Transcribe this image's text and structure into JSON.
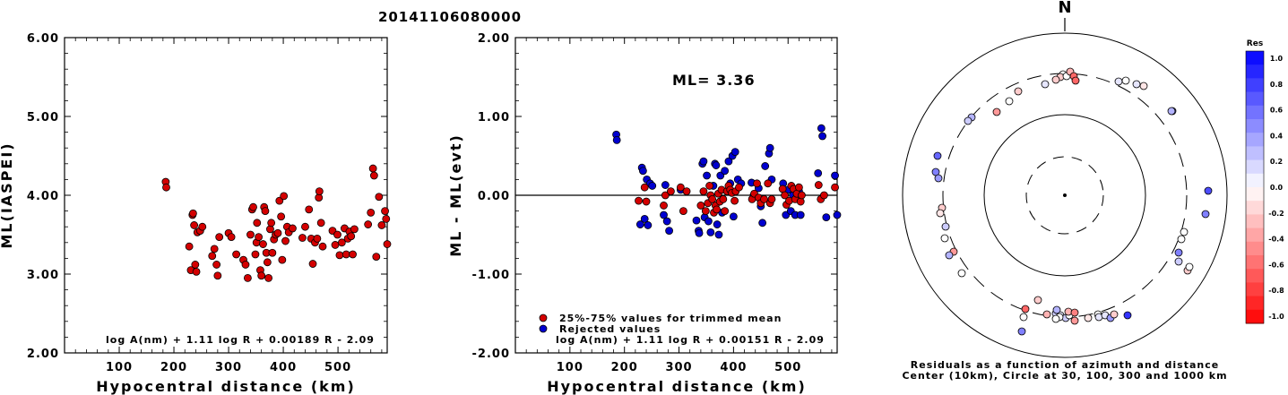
{
  "title": "20141106080000",
  "colors": {
    "red": "#d40000",
    "blue": "#0000d0",
    "axis": "#000000"
  },
  "chart_data": [
    {
      "type": "scatter",
      "xlabel": "Hypocentral distance (km)",
      "ylabel": "ML(IASPEI)",
      "xlim": [
        0,
        590
      ],
      "ylim": [
        2.0,
        6.0
      ],
      "xticks": [
        "100",
        "200",
        "300",
        "400",
        "500"
      ],
      "yticks": [
        "2.00",
        "3.00",
        "4.00",
        "5.00",
        "6.00"
      ],
      "formula": "log A(nm) + 1.11 log R + 0.00189 R - 2.09",
      "series": [
        {
          "color": "red",
          "points": [
            [
              185,
              4.17
            ],
            [
              186,
              4.1
            ],
            [
              228,
              3.35
            ],
            [
              231,
              3.05
            ],
            [
              234,
              3.75
            ],
            [
              235,
              3.77
            ],
            [
              237,
              3.62
            ],
            [
              239,
              3.12
            ],
            [
              241,
              3.03
            ],
            [
              243,
              3.53
            ],
            [
              248,
              3.55
            ],
            [
              252,
              3.6
            ],
            [
              270,
              3.23
            ],
            [
              274,
              3.32
            ],
            [
              278,
              3.12
            ],
            [
              280,
              2.98
            ],
            [
              283,
              3.47
            ],
            [
              300,
              3.52
            ],
            [
              305,
              3.47
            ],
            [
              314,
              3.25
            ],
            [
              327,
              3.18
            ],
            [
              331,
              3.12
            ],
            [
              335,
              2.95
            ],
            [
              340,
              3.5
            ],
            [
              343,
              3.82
            ],
            [
              345,
              3.85
            ],
            [
              349,
              3.25
            ],
            [
              351,
              3.4
            ],
            [
              352,
              3.65
            ],
            [
              355,
              3.47
            ],
            [
              358,
              3.05
            ],
            [
              360,
              2.98
            ],
            [
              363,
              3.38
            ],
            [
              365,
              3.85
            ],
            [
              367,
              3.8
            ],
            [
              369,
              3.27
            ],
            [
              371,
              3.15
            ],
            [
              373,
              2.95
            ],
            [
              376,
              3.57
            ],
            [
              378,
              3.65
            ],
            [
              380,
              3.27
            ],
            [
              383,
              3.44
            ],
            [
              386,
              3.5
            ],
            [
              390,
              3.52
            ],
            [
              393,
              3.93
            ],
            [
              396,
              3.73
            ],
            [
              398,
              3.18
            ],
            [
              401,
              3.99
            ],
            [
              404,
              3.42
            ],
            [
              407,
              3.6
            ],
            [
              410,
              3.53
            ],
            [
              417,
              3.58
            ],
            [
              435,
              3.46
            ],
            [
              440,
              3.6
            ],
            [
              447,
              3.82
            ],
            [
              451,
              3.45
            ],
            [
              454,
              3.13
            ],
            [
              458,
              3.4
            ],
            [
              462,
              3.45
            ],
            [
              465,
              3.97
            ],
            [
              466,
              4.05
            ],
            [
              469,
              3.65
            ],
            [
              472,
              3.35
            ],
            [
              490,
              3.55
            ],
            [
              495,
              3.37
            ],
            [
              499,
              3.5
            ],
            [
              503,
              3.24
            ],
            [
              507,
              3.4
            ],
            [
              512,
              3.58
            ],
            [
              515,
              3.25
            ],
            [
              518,
              3.45
            ],
            [
              521,
              3.54
            ],
            [
              524,
              3.48
            ],
            [
              527,
              3.25
            ],
            [
              530,
              3.57
            ],
            [
              555,
              3.63
            ],
            [
              560,
              3.78
            ],
            [
              564,
              4.34
            ],
            [
              566,
              4.25
            ],
            [
              570,
              3.22
            ],
            [
              575,
              3.98
            ],
            [
              580,
              3.62
            ],
            [
              586,
              3.8
            ],
            [
              588,
              3.7
            ],
            [
              590,
              3.38
            ]
          ]
        }
      ]
    },
    {
      "type": "scatter",
      "xlabel": "Hypocentral distance (km)",
      "ylabel": "ML - ML(evt)",
      "xlim": [
        0,
        590
      ],
      "ylim": [
        -2.0,
        2.0
      ],
      "xticks": [
        "100",
        "200",
        "300",
        "400",
        "500"
      ],
      "yticks": [
        "-2.00",
        "-1.00",
        "0.00",
        "1.00",
        "2.00"
      ],
      "annotation": "ML= 3.36",
      "formula": "log A(nm) + 1.11 log R + 0.00151 R - 2.09",
      "legend": [
        {
          "color": "red",
          "label": "25%-75% values for trimmed mean"
        },
        {
          "color": "blue",
          "label": "Rejected values"
        }
      ],
      "series": [
        {
          "color": "blue",
          "points": [
            [
              185,
              0.77
            ],
            [
              186,
              0.7
            ],
            [
              229,
              -0.37
            ],
            [
              232,
              0.35
            ],
            [
              234,
              0.31
            ],
            [
              237,
              -0.3
            ],
            [
              241,
              0.2
            ],
            [
              243,
              -0.38
            ],
            [
              247,
              0.15
            ],
            [
              251,
              0.12
            ],
            [
              272,
              -0.25
            ],
            [
              275,
              0.13
            ],
            [
              278,
              -0.33
            ],
            [
              282,
              -0.45
            ],
            [
              303,
              0.07
            ],
            [
              332,
              -0.32
            ],
            [
              336,
              -0.45
            ],
            [
              337,
              -0.48
            ],
            [
              343,
              0.4
            ],
            [
              345,
              0.43
            ],
            [
              347,
              -0.28
            ],
            [
              351,
              0.25
            ],
            [
              354,
              -0.33
            ],
            [
              358,
              -0.47
            ],
            [
              363,
              0.12
            ],
            [
              366,
              0.4
            ],
            [
              368,
              0.38
            ],
            [
              370,
              -0.37
            ],
            [
              373,
              -0.5
            ],
            [
              376,
              0.25
            ],
            [
              379,
              -0.22
            ],
            [
              384,
              0.31
            ],
            [
              391,
              0.43
            ],
            [
              394,
              0.15
            ],
            [
              398,
              0.5
            ],
            [
              400,
              -0.27
            ],
            [
              403,
              0.55
            ],
            [
              408,
              0.2
            ],
            [
              414,
              0.15
            ],
            [
              433,
              0.16
            ],
            [
              437,
              0.0
            ],
            [
              446,
              0.09
            ],
            [
              450,
              -0.14
            ],
            [
              453,
              -0.35
            ],
            [
              458,
              0.37
            ],
            [
              465,
              0.53
            ],
            [
              467,
              0.6
            ],
            [
              470,
              0.2
            ],
            [
              491,
              0.15
            ],
            [
              496,
              -0.25
            ],
            [
              500,
              0.07
            ],
            [
              505,
              -0.2
            ],
            [
              509,
              0.0
            ],
            [
              513,
              -0.25
            ],
            [
              520,
              0.05
            ],
            [
              523,
              -0.25
            ],
            [
              555,
              0.28
            ],
            [
              561,
              0.85
            ],
            [
              563,
              0.75
            ],
            [
              570,
              -0.28
            ],
            [
              586,
              0.25
            ],
            [
              590,
              -0.25
            ]
          ]
        },
        {
          "color": "red",
          "points": [
            [
              226,
              -0.07
            ],
            [
              237,
              0.1
            ],
            [
              240,
              -0.08
            ],
            [
              272,
              -0.13
            ],
            [
              275,
              0.0
            ],
            [
              285,
              0.05
            ],
            [
              303,
              0.1
            ],
            [
              308,
              -0.2
            ],
            [
              314,
              0.05
            ],
            [
              340,
              -0.13
            ],
            [
              345,
              0.05
            ],
            [
              349,
              -0.2
            ],
            [
              353,
              -0.1
            ],
            [
              356,
              0.12
            ],
            [
              358,
              0.0
            ],
            [
              361,
              -0.05
            ],
            [
              364,
              -0.22
            ],
            [
              367,
              -0.13
            ],
            [
              369,
              -0.18
            ],
            [
              372,
              0.02
            ],
            [
              375,
              -0.08
            ],
            [
              378,
              0.07
            ],
            [
              381,
              -0.05
            ],
            [
              384,
              -0.2
            ],
            [
              388,
              0.05
            ],
            [
              391,
              0.12
            ],
            [
              394,
              0.07
            ],
            [
              397,
              0.03
            ],
            [
              402,
              -0.07
            ],
            [
              404,
              0.05
            ],
            [
              410,
              0.1
            ],
            [
              434,
              -0.05
            ],
            [
              438,
              0.02
            ],
            [
              443,
              0.15
            ],
            [
              446,
              -0.03
            ],
            [
              450,
              -0.1
            ],
            [
              456,
              -0.05
            ],
            [
              463,
              0.15
            ],
            [
              467,
              -0.1
            ],
            [
              470,
              -0.05
            ],
            [
              490,
              0.08
            ],
            [
              494,
              0.0
            ],
            [
              497,
              -0.12
            ],
            [
              502,
              -0.07
            ],
            [
              506,
              0.12
            ],
            [
              510,
              0.08
            ],
            [
              513,
              -0.05
            ],
            [
              516,
              0.02
            ],
            [
              520,
              0.1
            ],
            [
              523,
              -0.08
            ],
            [
              525,
              0.0
            ],
            [
              556,
              0.13
            ],
            [
              560,
              -0.05
            ],
            [
              566,
              0.0
            ],
            [
              586,
              0.1
            ]
          ]
        }
      ]
    },
    {
      "type": "polar",
      "north_label": "N",
      "caption_lines": [
        "Residuals as a function of azimuth and distance",
        "Center (10km), Circle at 30, 100, 300 and 1000 km"
      ],
      "colorbar": {
        "title": "Res",
        "labels": [
          "1.0",
          "0.8",
          "0.6",
          "0.4",
          "0.2",
          "0.0",
          "-0.2",
          "-0.4",
          "-0.6",
          "-0.8",
          "-1.0"
        ]
      },
      "stations": [
        [
          -2,
          135,
          0.0
        ],
        [
          -5,
          132,
          -0.2
        ],
        [
          2,
          133,
          0.0
        ],
        [
          6,
          138,
          -0.3
        ],
        [
          10,
          133,
          -0.6
        ],
        [
          -10,
          129,
          -0.2
        ],
        [
          -22,
          124,
          0.1
        ],
        [
          12,
          128,
          -0.6
        ],
        [
          -52,
          116,
          -0.2
        ],
        [
          -62,
          105,
          0.0
        ],
        [
          -76,
          93,
          -0.4
        ],
        [
          -104,
          87,
          0.3
        ],
        [
          -108,
          83,
          0.2
        ],
        [
          60,
          127,
          0.1
        ],
        [
          68,
          128,
          0.0
        ],
        [
          80,
          124,
          0.1
        ],
        [
          88,
          122,
          -0.1
        ],
        [
          120,
          94,
          0.5
        ],
        [
          -142,
          44,
          0.6
        ],
        [
          -144,
          26,
          0.5
        ],
        [
          -141,
          19,
          0.4
        ],
        [
          -137,
          -14,
          -0.2
        ],
        [
          -139,
          -20,
          -0.1
        ],
        [
          -133,
          -35,
          0.2
        ],
        [
          -134,
          -48,
          0.0
        ],
        [
          -124,
          -63,
          -0.4
        ],
        [
          -129,
          -67,
          0.3
        ],
        [
          -115,
          -87,
          0.0
        ],
        [
          160,
          5,
          0.7
        ],
        [
          157,
          -21,
          0.5
        ],
        [
          133,
          -41,
          0.0
        ],
        [
          130,
          -49,
          0.0
        ],
        [
          119,
          94,
          0.3
        ],
        [
          127,
          -64,
          0.5
        ],
        [
          137,
          -84,
          -0.2
        ],
        [
          139,
          -80,
          0.0
        ],
        [
          127,
          -74,
          0.2
        ],
        [
          -44,
          -127,
          -0.6
        ],
        [
          -30,
          -117,
          -0.2
        ],
        [
          -20,
          -133,
          -0.3
        ],
        [
          -10,
          -132,
          0.2
        ],
        [
          -5,
          -134,
          0.1
        ],
        [
          -9,
          -128,
          0.3
        ],
        [
          1,
          -137,
          0.2
        ],
        [
          -6,
          -136,
          0.0
        ],
        [
          5,
          -134,
          0.0
        ],
        [
          4,
          -130,
          -0.3
        ],
        [
          11,
          -131,
          -0.5
        ],
        [
          11,
          -140,
          -0.4
        ],
        [
          26,
          -137,
          -0.1
        ],
        [
          37,
          -133,
          0.0
        ],
        [
          38,
          -136,
          0.1
        ],
        [
          45,
          -134,
          0.1
        ],
        [
          51,
          -137,
          0.4
        ],
        [
          55,
          -133,
          -0.2
        ],
        [
          70,
          -134,
          0.8
        ],
        [
          -48,
          -152,
          0.5
        ],
        [
          -46,
          -136,
          0.0
        ],
        [
          -10,
          -138,
          0.0
        ]
      ]
    }
  ]
}
